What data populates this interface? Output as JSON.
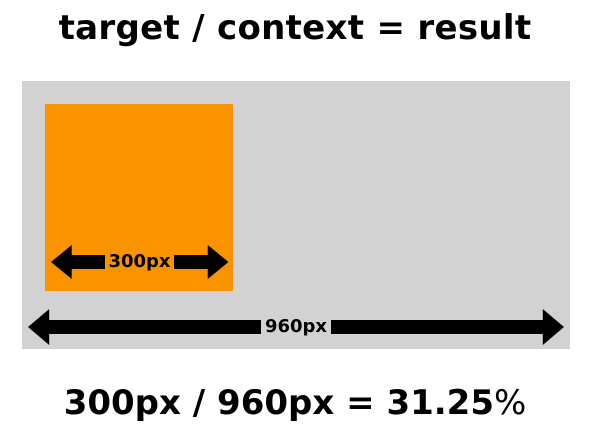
{
  "title": "target / context = result",
  "inner_measure": {
    "label": "300px"
  },
  "outer_measure": {
    "label": "960px"
  },
  "formula": {
    "expression": "300px / 960px = 31.25",
    "percent_sign": "%"
  },
  "colors": {
    "target_box": "#f99300",
    "context_area": "#d2d2d2",
    "arrows": "#000000"
  }
}
